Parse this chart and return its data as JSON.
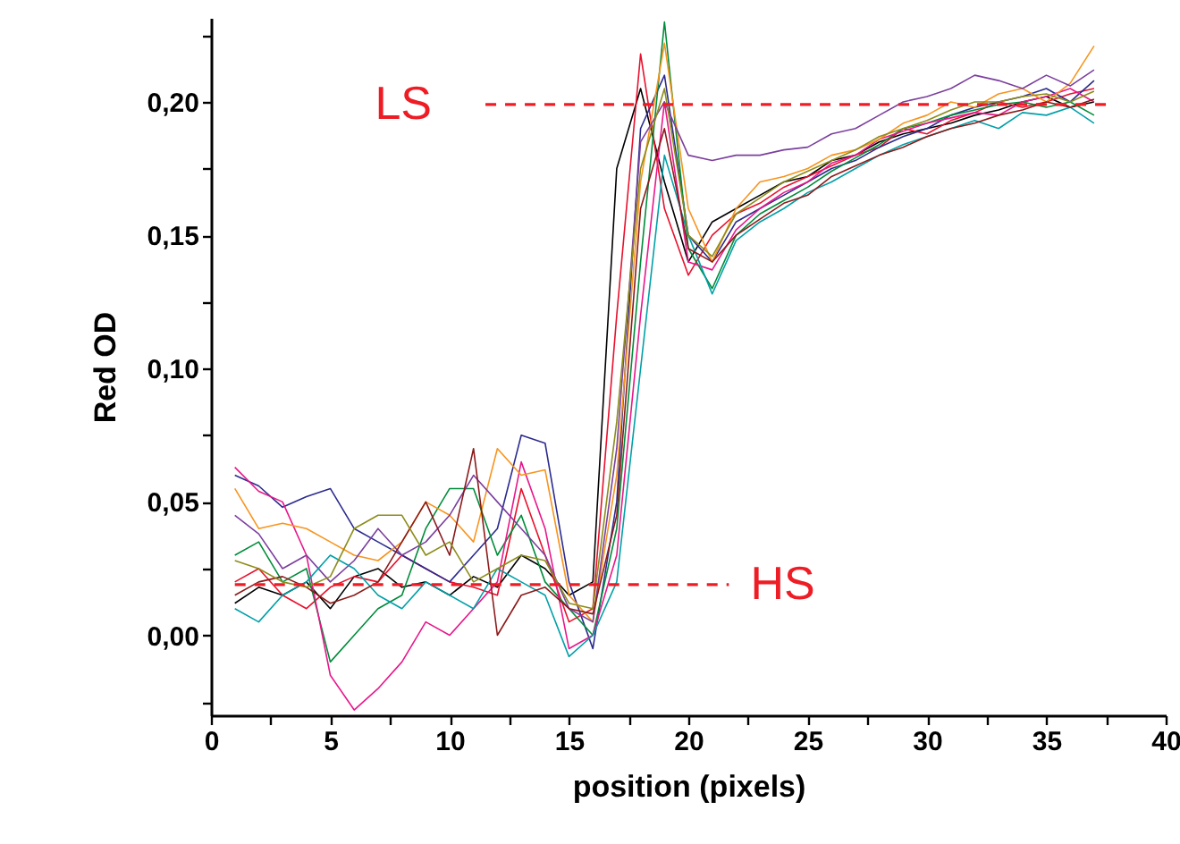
{
  "chart_data": {
    "type": "line",
    "xlabel": "position (pixels)",
    "ylabel": "Red OD",
    "grid": false,
    "x": [
      1,
      2,
      3,
      4,
      5,
      6,
      7,
      8,
      9,
      10,
      11,
      12,
      13,
      14,
      15,
      16,
      17,
      18,
      19,
      20,
      21,
      22,
      23,
      24,
      25,
      26,
      27,
      28,
      29,
      30,
      31,
      32,
      33,
      34,
      35,
      36,
      37
    ],
    "xlim": [
      0,
      40
    ],
    "xticks": [
      0,
      {
        "value": 2.5,
        "label": null
      },
      5,
      {
        "value": 7.5,
        "label": null
      },
      10,
      {
        "value": 12.5,
        "label": null
      },
      15,
      {
        "value": 17.5,
        "label": null
      },
      20,
      {
        "value": 22.5,
        "label": null
      },
      25,
      {
        "value": 27.5,
        "label": null
      },
      30,
      {
        "value": 32.5,
        "label": null
      },
      35,
      {
        "value": 37.5,
        "label": null
      },
      40
    ],
    "ylim": [
      -0.03,
      0.2315
    ],
    "yticks": [
      {
        "value": -0.025,
        "label": null
      },
      {
        "value": 0,
        "label": "0,00"
      },
      {
        "value": 0.025,
        "label": null
      },
      {
        "value": 0.05,
        "label": "0,05"
      },
      {
        "value": 0.075,
        "label": null
      },
      {
        "value": 0.1,
        "label": "0,10"
      },
      {
        "value": 0.125,
        "label": null
      },
      {
        "value": 0.15,
        "label": "0,15"
      },
      {
        "value": 0.175,
        "label": null
      },
      {
        "value": 0.2,
        "label": "0,20"
      },
      {
        "value": 0.225,
        "label": null
      }
    ],
    "series": [
      {
        "color": "#000000",
        "values": [
          0.012,
          0.018,
          0.015,
          0.02,
          0.01,
          0.022,
          0.025,
          0.018,
          0.02,
          0.015,
          0.022,
          0.018,
          0.03,
          0.025,
          0.015,
          0.02,
          0.175,
          0.205,
          0.17,
          0.14,
          0.155,
          0.16,
          0.165,
          0.17,
          0.172,
          0.178,
          0.18,
          0.185,
          0.188,
          0.19,
          0.192,
          0.195,
          0.197,
          0.2,
          0.202,
          0.198,
          0.2
        ]
      },
      {
        "color": "#e8112d",
        "values": [
          0.02,
          0.025,
          0.015,
          0.01,
          0.018,
          0.022,
          0.02,
          0.03,
          0.025,
          0.02,
          0.018,
          0.015,
          0.055,
          0.03,
          0.005,
          0.01,
          0.12,
          0.218,
          0.16,
          0.135,
          0.15,
          0.158,
          0.162,
          0.168,
          0.172,
          0.176,
          0.18,
          0.183,
          0.19,
          0.188,
          0.193,
          0.196,
          0.2,
          0.198,
          0.2,
          0.203,
          0.205
        ]
      },
      {
        "color": "#2b2b8f",
        "values": [
          0.06,
          0.056,
          0.048,
          0.052,
          0.055,
          0.04,
          0.035,
          0.03,
          0.025,
          0.02,
          0.03,
          0.04,
          0.075,
          0.072,
          0.02,
          -0.005,
          0.05,
          0.19,
          0.21,
          0.15,
          0.14,
          0.155,
          0.16,
          0.165,
          0.17,
          0.175,
          0.178,
          0.183,
          0.187,
          0.19,
          0.195,
          0.198,
          0.2,
          0.202,
          0.205,
          0.2,
          0.208
        ]
      },
      {
        "color": "#008c3a",
        "values": [
          0.03,
          0.035,
          0.02,
          0.025,
          -0.01,
          0.0,
          0.01,
          0.015,
          0.04,
          0.055,
          0.055,
          0.03,
          0.045,
          0.02,
          0.01,
          0.0,
          0.04,
          0.14,
          0.23,
          0.145,
          0.13,
          0.15,
          0.158,
          0.163,
          0.168,
          0.174,
          0.179,
          0.184,
          0.19,
          0.192,
          0.195,
          0.197,
          0.199,
          0.2,
          0.198,
          0.2,
          0.195
        ]
      },
      {
        "color": "#e8178a",
        "values": [
          0.063,
          0.054,
          0.05,
          0.03,
          -0.015,
          -0.028,
          -0.02,
          -0.01,
          0.005,
          0.0,
          0.01,
          0.02,
          0.065,
          0.04,
          -0.005,
          0.0,
          0.03,
          0.12,
          0.2,
          0.14,
          0.137,
          0.152,
          0.16,
          0.166,
          0.17,
          0.177,
          0.18,
          0.186,
          0.189,
          0.192,
          0.194,
          0.196,
          0.195,
          0.2,
          0.202,
          0.205,
          0.2
        ]
      },
      {
        "color": "#f7941d",
        "values": [
          0.055,
          0.04,
          0.042,
          0.04,
          0.035,
          0.03,
          0.028,
          0.035,
          0.05,
          0.045,
          0.035,
          0.07,
          0.06,
          0.062,
          0.015,
          0.005,
          0.06,
          0.17,
          0.222,
          0.16,
          0.14,
          0.16,
          0.17,
          0.172,
          0.175,
          0.18,
          0.182,
          0.186,
          0.192,
          0.195,
          0.2,
          0.198,
          0.203,
          0.205,
          0.2,
          0.207,
          0.221
        ]
      },
      {
        "color": "#7b3f9e",
        "values": [
          0.045,
          0.038,
          0.025,
          0.03,
          0.02,
          0.028,
          0.04,
          0.03,
          0.035,
          0.045,
          0.06,
          0.05,
          0.04,
          0.03,
          0.01,
          0.005,
          0.07,
          0.185,
          0.2,
          0.18,
          0.178,
          0.18,
          0.18,
          0.182,
          0.183,
          0.188,
          0.19,
          0.195,
          0.2,
          0.202,
          0.205,
          0.21,
          0.208,
          0.205,
          0.21,
          0.206,
          0.212
        ]
      },
      {
        "color": "#00a0a8",
        "values": [
          0.01,
          0.005,
          0.015,
          0.02,
          0.03,
          0.025,
          0.015,
          0.01,
          0.02,
          0.015,
          0.01,
          0.025,
          0.02,
          0.015,
          -0.008,
          0.0,
          0.02,
          0.1,
          0.18,
          0.15,
          0.128,
          0.148,
          0.155,
          0.16,
          0.166,
          0.17,
          0.175,
          0.18,
          0.184,
          0.187,
          0.19,
          0.193,
          0.19,
          0.196,
          0.195,
          0.198,
          0.192
        ]
      },
      {
        "color": "#8b1a1a",
        "values": [
          0.015,
          0.02,
          0.022,
          0.018,
          0.012,
          0.015,
          0.02,
          0.035,
          0.05,
          0.03,
          0.07,
          0.0,
          0.015,
          0.018,
          0.01,
          0.008,
          0.045,
          0.16,
          0.19,
          0.145,
          0.14,
          0.15,
          0.156,
          0.162,
          0.165,
          0.172,
          0.176,
          0.18,
          0.183,
          0.187,
          0.19,
          0.192,
          0.195,
          0.197,
          0.2,
          0.198,
          0.201
        ]
      },
      {
        "color": "#8c8c1a",
        "values": [
          0.028,
          0.025,
          0.02,
          0.018,
          0.022,
          0.04,
          0.045,
          0.045,
          0.03,
          0.035,
          0.02,
          0.025,
          0.03,
          0.028,
          0.012,
          0.01,
          0.08,
          0.175,
          0.205,
          0.15,
          0.142,
          0.158,
          0.164,
          0.17,
          0.174,
          0.178,
          0.182,
          0.187,
          0.19,
          0.193,
          0.197,
          0.2,
          0.2,
          0.202,
          0.203,
          0.2,
          0.204
        ]
      },
      {
        "name": "LS",
        "color": "#ee1c25",
        "line_style": "dashed",
        "x": [
          11.5,
          37.5
        ],
        "values": [
          0.199,
          0.199
        ]
      },
      {
        "name": "HS",
        "color": "#ee1c25",
        "line_style": "dashed",
        "x": [
          1,
          21.7
        ],
        "values": [
          0.019,
          0.019
        ]
      }
    ]
  }
}
